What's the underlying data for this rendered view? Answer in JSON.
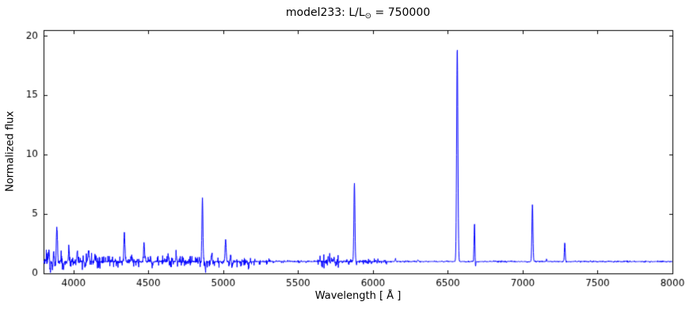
{
  "figure": {
    "background": "#ffffff",
    "frame_color": "#000000"
  },
  "chart_data": {
    "type": "line",
    "title": "model233: L/L⊙ = 750000",
    "title_prefix": "model233: L/L",
    "title_sun": "⊙",
    "title_suffix": " = 750000",
    "xlabel": "Wavelength [ Å ]",
    "ylabel": "Normalized flux",
    "xlim": [
      3800,
      8000
    ],
    "ylim": [
      0,
      20.5
    ],
    "xticks": [
      4000,
      4500,
      5000,
      5500,
      6000,
      6500,
      7000,
      7500,
      8000
    ],
    "yticks": [
      0,
      5,
      10,
      15,
      20
    ],
    "line_color": "#0000ff",
    "baseline": 1.0,
    "emission_peaks": [
      {
        "x": 3820,
        "height": 0.5,
        "width": 4
      },
      {
        "x": 3835,
        "height": 1.1,
        "width": 5
      },
      {
        "x": 3868,
        "height": 0.9,
        "width": 4
      },
      {
        "x": 3889,
        "height": 3.0,
        "width": 5
      },
      {
        "x": 3920,
        "height": 0.5,
        "width": 4
      },
      {
        "x": 3970,
        "height": 1.1,
        "width": 5
      },
      {
        "x": 4026,
        "height": 0.9,
        "width": 4
      },
      {
        "x": 4101,
        "height": 1.0,
        "width": 5
      },
      {
        "x": 4144,
        "height": 0.45,
        "width": 4
      },
      {
        "x": 4340,
        "height": 2.6,
        "width": 5
      },
      {
        "x": 4388,
        "height": 0.55,
        "width": 4
      },
      {
        "x": 4471,
        "height": 1.55,
        "width": 5
      },
      {
        "x": 4634,
        "height": 0.45,
        "width": 4
      },
      {
        "x": 4686,
        "height": 0.55,
        "width": 4
      },
      {
        "x": 4713,
        "height": 0.45,
        "width": 4
      },
      {
        "x": 4861,
        "height": 5.2,
        "width": 5
      },
      {
        "x": 4922,
        "height": 0.6,
        "width": 4
      },
      {
        "x": 5016,
        "height": 1.85,
        "width": 5
      },
      {
        "x": 5048,
        "height": 0.5,
        "width": 4
      },
      {
        "x": 5700,
        "height": 0.65,
        "width": 4
      },
      {
        "x": 5740,
        "height": 0.45,
        "width": 3
      },
      {
        "x": 5876,
        "height": 6.6,
        "width": 5
      },
      {
        "x": 6150,
        "height": 0.2,
        "width": 4
      },
      {
        "x": 6300,
        "height": 0.15,
        "width": 4
      },
      {
        "x": 6563,
        "height": 18.0,
        "width": 6
      },
      {
        "x": 6678,
        "height": 3.2,
        "width": 4
      },
      {
        "x": 7065,
        "height": 4.8,
        "width": 5
      },
      {
        "x": 7160,
        "height": 0.2,
        "width": 4
      },
      {
        "x": 7281,
        "height": 1.6,
        "width": 4
      }
    ],
    "absorption_dips": [
      {
        "x": 3845,
        "depth": 0.7,
        "width": 4
      },
      {
        "x": 3860,
        "depth": 0.6,
        "width": 4
      },
      {
        "x": 3933,
        "depth": 0.65,
        "width": 4
      },
      {
        "x": 4076,
        "depth": 0.5,
        "width": 4
      },
      {
        "x": 4530,
        "depth": 0.25,
        "width": 4
      },
      {
        "x": 4881,
        "depth": 0.7,
        "width": 3
      },
      {
        "x": 5060,
        "depth": 0.5,
        "width": 4
      },
      {
        "x": 5170,
        "depth": 0.45,
        "width": 4
      },
      {
        "x": 5697,
        "depth": 0.5,
        "width": 4
      },
      {
        "x": 5752,
        "depth": 0.4,
        "width": 3
      },
      {
        "x": 5890,
        "depth": 0.3,
        "width": 3
      },
      {
        "x": 6684,
        "depth": 0.6,
        "width": 3
      }
    ],
    "noise_regions": [
      {
        "xmin": 3800,
        "xmax": 3860,
        "amp": 0.45
      },
      {
        "xmin": 3860,
        "xmax": 4200,
        "amp": 0.22
      },
      {
        "xmin": 4200,
        "xmax": 4760,
        "amp": 0.15
      },
      {
        "xmin": 4760,
        "xmax": 5120,
        "amp": 0.15
      },
      {
        "xmin": 5120,
        "xmax": 5320,
        "amp": 0.1
      },
      {
        "xmin": 5320,
        "xmax": 5620,
        "amp": 0.04
      },
      {
        "xmin": 5620,
        "xmax": 5780,
        "amp": 0.25
      },
      {
        "xmin": 5780,
        "xmax": 6100,
        "amp": 0.08
      },
      {
        "xmin": 6100,
        "xmax": 8000,
        "amp": 0.025
      }
    ]
  }
}
